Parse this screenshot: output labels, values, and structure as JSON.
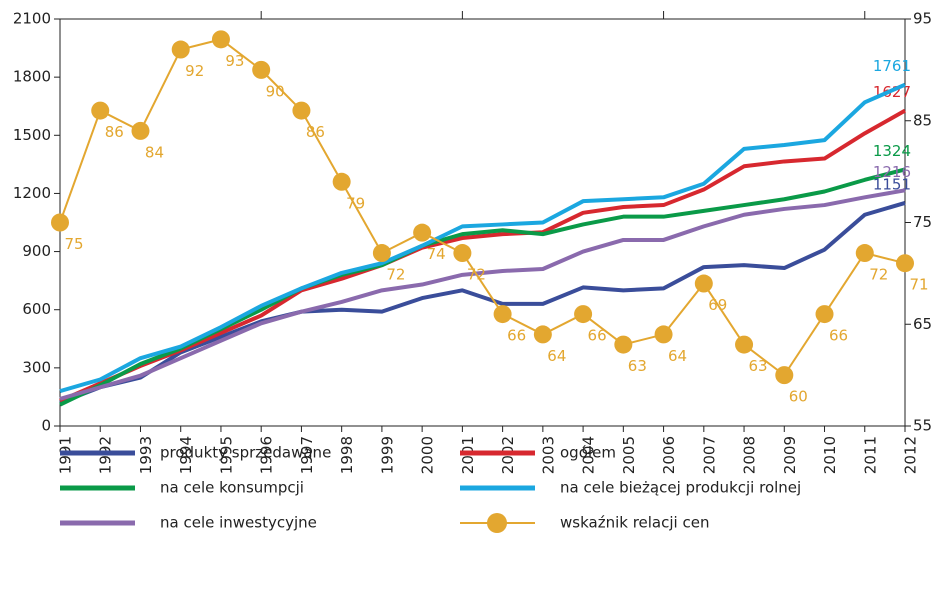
{
  "chart_data": {
    "type": "line",
    "categories": [
      "1991",
      "1992",
      "1993",
      "1994",
      "1995",
      "1996",
      "1997",
      "1998",
      "1999",
      "2000",
      "2001",
      "2002",
      "2003",
      "2004",
      "2005",
      "2006",
      "2007",
      "2008",
      "2009",
      "2010",
      "2011",
      "2012"
    ],
    "series": [
      {
        "name": "produkty sprzedawane",
        "color": "#3a4d9a",
        "values": [
          120,
          200,
          250,
          380,
          460,
          540,
          590,
          600,
          590,
          660,
          700,
          630,
          630,
          715,
          700,
          710,
          820,
          830,
          815,
          910,
          1090,
          1151
        ]
      },
      {
        "name": "ogółem",
        "color": "#d7282f",
        "values": [
          130,
          220,
          310,
          390,
          480,
          570,
          700,
          760,
          830,
          920,
          970,
          990,
          1000,
          1100,
          1130,
          1140,
          1220,
          1340,
          1365,
          1380,
          1510,
          1627
        ]
      },
      {
        "name": "na cele konsumpcji",
        "color": "#0a9a48",
        "values": [
          110,
          210,
          320,
          400,
          500,
          600,
          710,
          780,
          830,
          930,
          990,
          1010,
          990,
          1040,
          1080,
          1080,
          1110,
          1140,
          1170,
          1210,
          1270,
          1324
        ]
      },
      {
        "name": "na cele bieżącej produkcji rolnej",
        "color": "#1ba7e0",
        "values": [
          180,
          240,
          350,
          410,
          510,
          620,
          710,
          790,
          840,
          930,
          1030,
          1040,
          1050,
          1160,
          1170,
          1180,
          1250,
          1430,
          1450,
          1475,
          1670,
          1761
        ]
      },
      {
        "name": "na cele inwestycyjne",
        "color": "#8a6aad",
        "values": [
          140,
          200,
          260,
          350,
          440,
          530,
          590,
          640,
          700,
          730,
          780,
          800,
          810,
          900,
          960,
          960,
          1030,
          1090,
          1120,
          1140,
          1180,
          1216
        ]
      },
      {
        "name": "wskaźnik relacji cen",
        "color": "#e3a730",
        "axis": "y2",
        "values": [
          75,
          86,
          84,
          92,
          93,
          90,
          86,
          79,
          72,
          74,
          72,
          66,
          64,
          66,
          63,
          64,
          69,
          63,
          60,
          66,
          72,
          71
        ]
      }
    ],
    "ylim": [
      0,
      2100
    ],
    "yticks": [
      0,
      300,
      600,
      900,
      1200,
      1500,
      1800,
      2100
    ],
    "y2lim": [
      55,
      95
    ],
    "y2ticks": [
      55,
      65,
      75,
      85,
      95
    ]
  }
}
